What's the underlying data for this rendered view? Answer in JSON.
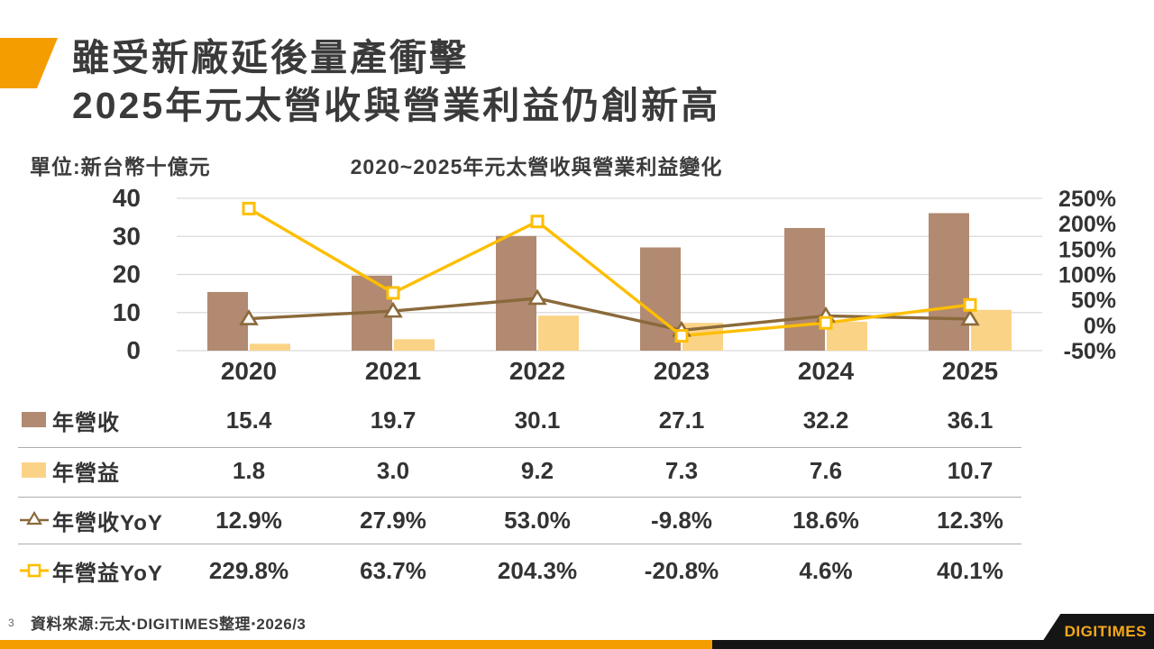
{
  "slide": {
    "title_line1": "雖受新廠延後量產衝擊",
    "title_line2": "2025年元太營收與營業利益仍創新高",
    "unit_label": "單位:新台幣十億元",
    "page_number": "3",
    "source_note": "資料來源:元太‧DIGITIMES整理‧2026/3",
    "logo_text": "DIGITIMES"
  },
  "colors": {
    "accent_orange": "#f49d00",
    "bar_revenue_brown": "#b18a71",
    "bar_profit_yellow": "#fbd387",
    "line_revenue_yoy_brown": "#8a6a3b",
    "line_profit_yoy_gold": "#fdbe00",
    "gridline_gray": "#d9d9d9",
    "text_dark": "#333333",
    "logo_black": "#151515"
  },
  "chart_data": {
    "type": "combo-bar-line",
    "title": "2020~2025年元太營收與營業利益變化",
    "unit": "新台幣十億元",
    "categories": [
      "2020",
      "2021",
      "2022",
      "2023",
      "2024",
      "2025"
    ],
    "series": [
      {
        "name": "年營收",
        "type": "bar",
        "axis": "left",
        "color": "#b18a71",
        "values": [
          15.4,
          19.7,
          30.1,
          27.1,
          32.2,
          36.1
        ]
      },
      {
        "name": "年營益",
        "type": "bar",
        "axis": "left",
        "color": "#fbd387",
        "values": [
          1.8,
          3.0,
          9.2,
          7.3,
          7.6,
          10.7
        ]
      },
      {
        "name": "年營收YoY",
        "type": "line",
        "axis": "right",
        "marker": "triangle",
        "color": "#8a6a3b",
        "values": [
          12.9,
          27.9,
          53.0,
          -9.8,
          18.6,
          12.3
        ]
      },
      {
        "name": "年營益YoY",
        "type": "line",
        "axis": "right",
        "marker": "square",
        "color": "#fdbe00",
        "values": [
          229.8,
          63.7,
          204.3,
          -20.8,
          4.6,
          40.1
        ]
      }
    ],
    "left_axis": {
      "min": 0,
      "max": 40,
      "tick_labels": [
        "40",
        "30",
        "20",
        "10",
        "0"
      ],
      "tick_values": [
        40,
        30,
        20,
        10,
        0
      ]
    },
    "right_axis": {
      "min": -50,
      "max": 250,
      "tick_labels": [
        "250%",
        "200%",
        "150%",
        "100%",
        "50%",
        "0%",
        "-50%"
      ],
      "tick_values": [
        250,
        200,
        150,
        100,
        50,
        0,
        -50
      ]
    },
    "grid": true,
    "legend_position": "table-below"
  },
  "table": {
    "rows": [
      {
        "label": "年營收",
        "marker": "bar-brown",
        "values": [
          "15.4",
          "19.7",
          "30.1",
          "27.1",
          "32.2",
          "36.1"
        ]
      },
      {
        "label": "年營益",
        "marker": "bar-yellow",
        "values": [
          "1.8",
          "3.0",
          "9.2",
          "7.3",
          "7.6",
          "10.7"
        ]
      },
      {
        "label": "年營收YoY",
        "marker": "line-triangle",
        "values": [
          "12.9%",
          "27.9%",
          "53.0%",
          "-9.8%",
          "18.6%",
          "12.3%"
        ]
      },
      {
        "label": "年營益YoY",
        "marker": "line-square",
        "values": [
          "229.8%",
          "63.7%",
          "204.3%",
          "-20.8%",
          "4.6%",
          "40.1%"
        ]
      }
    ]
  }
}
